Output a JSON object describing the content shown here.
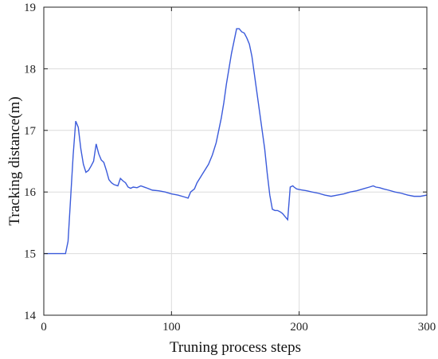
{
  "chart_data": {
    "type": "line",
    "title": "",
    "xlabel": "Truning process steps",
    "ylabel": "Tracking distance(m)",
    "xlim": [
      0,
      300
    ],
    "ylim": [
      14,
      19
    ],
    "xticks": [
      0,
      100,
      200,
      300
    ],
    "yticks": [
      14,
      15,
      16,
      17,
      18,
      19
    ],
    "grid": true,
    "line_color": "#3b5bdb",
    "series": [
      {
        "x": [
          0,
          10,
          17,
          19,
          21,
          23,
          25,
          27,
          29,
          31,
          33,
          35,
          37,
          39,
          41,
          43,
          45,
          47,
          49,
          51,
          53,
          55,
          58,
          60,
          62,
          64,
          66,
          68,
          70,
          73,
          76,
          80,
          85,
          90,
          95,
          100,
          105,
          110,
          113,
          115,
          118,
          120,
          123,
          126,
          129,
          132,
          135,
          137,
          139,
          141,
          143,
          145,
          147,
          149,
          151,
          153,
          155,
          157,
          159,
          161,
          163,
          165,
          167,
          169,
          171,
          173,
          175,
          177,
          179,
          181,
          183,
          185,
          187,
          189,
          191,
          193,
          195,
          196,
          198,
          200,
          203,
          206,
          210,
          215,
          220,
          225,
          230,
          235,
          240,
          245,
          250,
          255,
          258,
          260,
          263,
          266,
          270,
          275,
          280,
          285,
          290,
          295,
          300
        ],
        "y": [
          15.0,
          15.0,
          15.0,
          15.2,
          15.9,
          16.6,
          17.15,
          17.05,
          16.7,
          16.45,
          16.32,
          16.35,
          16.42,
          16.5,
          16.78,
          16.62,
          16.52,
          16.48,
          16.35,
          16.2,
          16.15,
          16.12,
          16.1,
          16.22,
          16.18,
          16.15,
          16.08,
          16.06,
          16.08,
          16.07,
          16.1,
          16.07,
          16.03,
          16.02,
          16.0,
          15.97,
          15.95,
          15.92,
          15.9,
          16.0,
          16.05,
          16.15,
          16.25,
          16.35,
          16.45,
          16.6,
          16.8,
          17.0,
          17.2,
          17.45,
          17.75,
          18.0,
          18.25,
          18.45,
          18.65,
          18.65,
          18.6,
          18.58,
          18.5,
          18.4,
          18.2,
          17.9,
          17.6,
          17.3,
          17.0,
          16.7,
          16.3,
          15.95,
          15.72,
          15.7,
          15.7,
          15.68,
          15.65,
          15.6,
          15.55,
          16.08,
          16.1,
          16.08,
          16.05,
          16.04,
          16.03,
          16.02,
          16.0,
          15.98,
          15.95,
          15.93,
          15.95,
          15.97,
          16.0,
          16.02,
          16.05,
          16.08,
          16.1,
          16.08,
          16.07,
          16.05,
          16.03,
          16.0,
          15.98,
          15.95,
          15.93,
          15.93,
          15.95
        ]
      }
    ]
  }
}
